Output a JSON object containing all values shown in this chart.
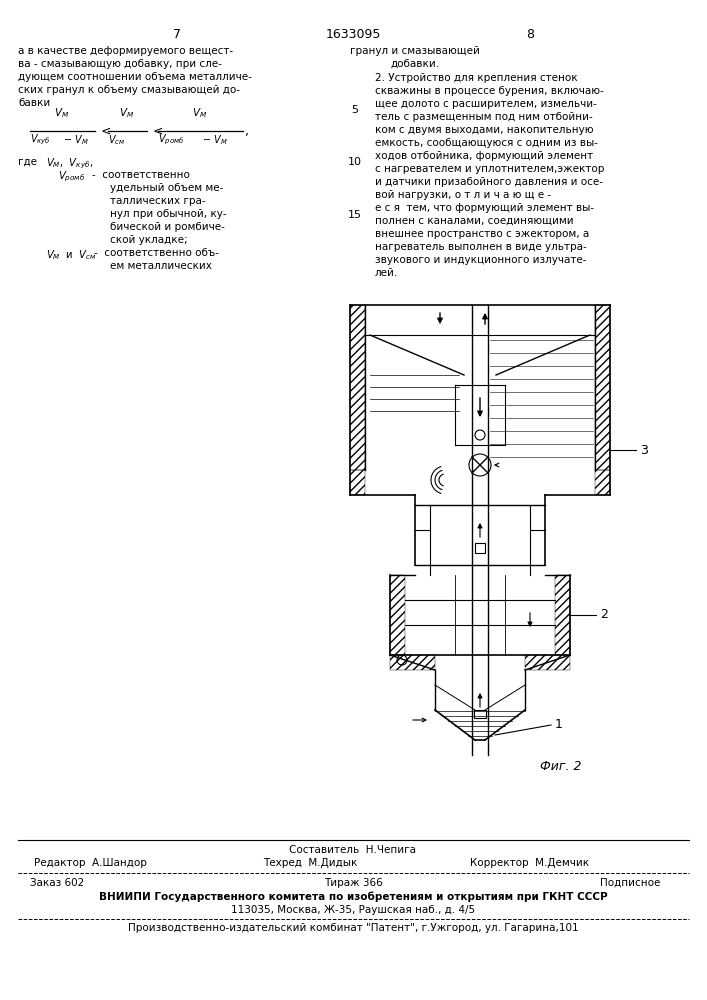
{
  "page_number_left": "7",
  "page_number_center": "1633095",
  "page_number_right": "8",
  "col_left_text": [
    "а в качестве деформируемого вещест-",
    "ва - смазывающую добавку, при сле-",
    "дующем соотношении объема металличе-",
    "ских гранул к объему смазывающей до-",
    "бавки"
  ],
  "col_right_text_top": [
    "гранул и смазывающей",
    "добавки."
  ],
  "col_right_claim": [
    "2. Устройство для крепления стенок",
    "скважины в процессе бурения, включаю-",
    "щее долото с расширителем, измельчи-",
    "тель с размещенным под ним отбойни-",
    "ком с двумя выходами, накопительную",
    "емкость, сообщающуюся с одним из вы-",
    "ходов отбойника, формующий элемент",
    "с нагревателем и уплотнителем,эжектор",
    "и датчики призабойного давления и осе-",
    "вой нагрузки, о т л и ч а ю щ е -",
    "е с я  тем, что формующий элемент вы-",
    "полнен с каналами, соединяющими",
    "внешнее пространство с эжектором, а",
    "нагреватель выполнен в виде ультра-",
    "звукового и индукционного излучате-",
    "лей."
  ],
  "footer_sestavitel": "Составитель  Н.Чепига",
  "footer_redaktor": "Редактор  А.Шандор",
  "footer_tehred": "Техред  М.Дидык",
  "footer_korrektor": "Корректор  М.Демчик",
  "footer_zakaz": "Заказ 602",
  "footer_tirazh": "Тираж 366",
  "footer_podpisnoe": "Подписное",
  "footer_vnipi": "ВНИИПИ Государственного комитета по изобретениям и открытиям при ГКНТ СССР",
  "footer_address": "113035, Москва, Ж-35, Раушская наб., д. 4/5",
  "footer_kombinat": "Производственно-издательский комбинат \"Патент\", г.Ужгород, ул. Гагарина,101",
  "fig_label": "Фиг. 2",
  "background_color": "#ffffff"
}
